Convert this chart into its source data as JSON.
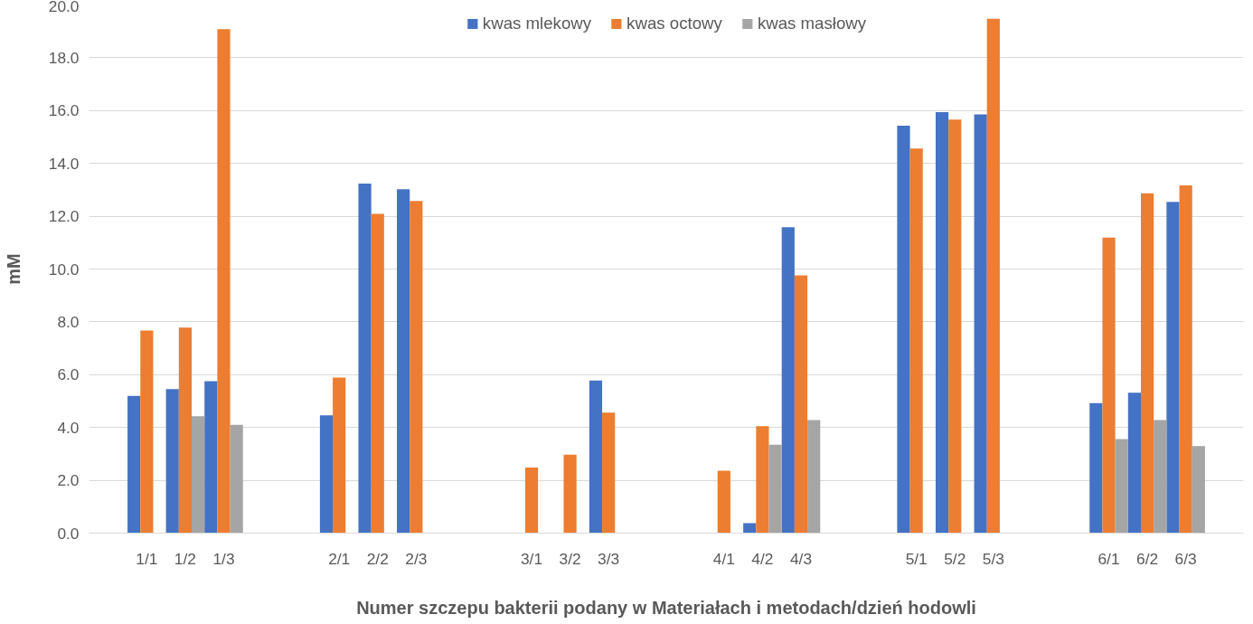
{
  "chart_data": {
    "type": "bar",
    "xlabel": "Numer szczepu bakterii podany w Materiałach i metodach/dzień hodowli",
    "ylabel": "mM",
    "categories": [
      null,
      "1/1",
      "1/2",
      "1/3",
      null,
      null,
      "2/1",
      "2/2",
      "2/3",
      null,
      null,
      "3/1",
      "3/2",
      "3/3",
      null,
      null,
      "4/1",
      "4/2",
      "4/3",
      null,
      null,
      "5/1",
      "5/2",
      "5/3",
      null,
      null,
      "6/1",
      "6/2",
      "6/3",
      null
    ],
    "series": [
      {
        "name": "kwas mlekowy",
        "color": "#4472c4",
        "values": [
          null,
          5.2,
          5.45,
          5.75,
          null,
          null,
          4.46,
          13.24,
          13.02,
          null,
          null,
          null,
          null,
          5.78,
          null,
          null,
          null,
          0.38,
          11.58,
          null,
          null,
          15.43,
          15.94,
          15.86,
          null,
          null,
          4.92,
          5.32,
          12.54,
          null
        ]
      },
      {
        "name": "kwas octowy",
        "color": "#ed7d31",
        "values": [
          null,
          7.67,
          7.78,
          19.08,
          null,
          null,
          5.89,
          12.09,
          12.58,
          null,
          null,
          2.48,
          2.97,
          4.56,
          null,
          null,
          2.36,
          4.05,
          9.76,
          null,
          null,
          14.56,
          15.66,
          19.48,
          null,
          null,
          11.19,
          12.87,
          13.17,
          null
        ]
      },
      {
        "name": "kwas masłowy",
        "color": "#a5a5a5",
        "values": [
          null,
          null,
          4.43,
          4.1,
          null,
          null,
          null,
          null,
          null,
          null,
          null,
          null,
          null,
          null,
          null,
          null,
          null,
          3.35,
          4.28,
          null,
          null,
          null,
          null,
          null,
          null,
          null,
          3.56,
          4.28,
          3.3,
          null
        ]
      }
    ],
    "ylim": [
      0,
      20
    ],
    "yticks": [
      {
        "value": 0,
        "label": "0.0"
      },
      {
        "value": 2,
        "label": "2.0"
      },
      {
        "value": 4,
        "label": "4.0"
      },
      {
        "value": 6,
        "label": "6.0"
      },
      {
        "value": 8,
        "label": "8.0"
      },
      {
        "value": 10,
        "label": "10.0"
      },
      {
        "value": 12,
        "label": "12.0"
      },
      {
        "value": 14,
        "label": "14.0"
      },
      {
        "value": 16,
        "label": "16.0"
      },
      {
        "value": 18,
        "label": "18.0"
      },
      {
        "value": 20,
        "label": "20.0"
      }
    ],
    "grid": "y",
    "legend": "top"
  }
}
